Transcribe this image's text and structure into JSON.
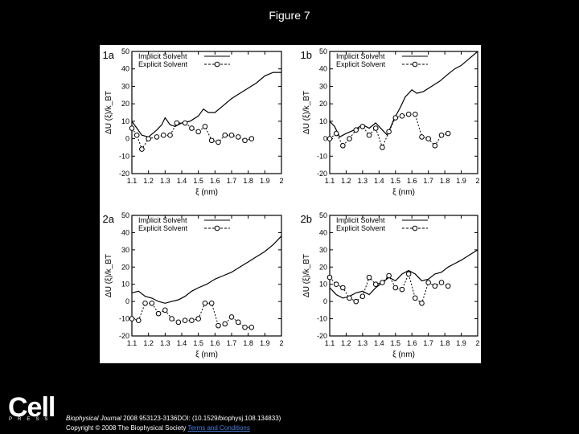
{
  "page": {
    "title": "Figure 7",
    "logo": "Cell",
    "press": "PRESS",
    "journal": "Biophysical Journal",
    "citation_rest": " 2008 953123-3136DOI: (10.1529/biophysj.108.134833)",
    "copyright": "Copyright © 2008 The Biophysical Society",
    "terms_link": "Terms and Conditions"
  },
  "chart_data": [
    {
      "type": "line",
      "panel_label": "1a",
      "legend": [
        "Implicit Solvent",
        "Explicit Solvent"
      ],
      "legend_position": "top-left",
      "xlabel": "ξ (nm)",
      "ylabel": "ΔU (ξ)/k_BT",
      "xlim": [
        1.1,
        2.0
      ],
      "ylim": [
        -20,
        50
      ],
      "xticks": [
        "1.1",
        "1.2",
        "1.3",
        "1.4",
        "1.5",
        "1.6",
        "1.7",
        "1.8",
        "1.9",
        "2"
      ],
      "yticks": [
        "50",
        "40",
        "30",
        "20",
        "10",
        "0",
        "-10",
        "-20"
      ],
      "series": [
        {
          "name": "Implicit Solvent",
          "style": "solid",
          "x": [
            1.1,
            1.13,
            1.16,
            1.2,
            1.25,
            1.28,
            1.3,
            1.33,
            1.36,
            1.4,
            1.45,
            1.5,
            1.53,
            1.56,
            1.6,
            1.65,
            1.7,
            1.75,
            1.8,
            1.85,
            1.9,
            1.95,
            2.0
          ],
          "y": [
            10,
            6,
            2,
            1,
            5,
            8,
            12,
            8,
            7,
            9,
            10,
            13,
            17,
            15,
            15,
            19,
            23,
            26,
            29,
            32,
            36,
            38,
            38
          ]
        },
        {
          "name": "Explicit Solvent",
          "style": "dashed-markers",
          "x": [
            1.1,
            1.13,
            1.16,
            1.2,
            1.25,
            1.29,
            1.33,
            1.37,
            1.42,
            1.46,
            1.5,
            1.54,
            1.58,
            1.62,
            1.66,
            1.7,
            1.74,
            1.78,
            1.82
          ],
          "y": [
            6,
            2,
            -6,
            0,
            1,
            2,
            2,
            9,
            9,
            6,
            4,
            7,
            -1,
            -2,
            2,
            2,
            1,
            -1,
            0
          ]
        }
      ]
    },
    {
      "type": "line",
      "panel_label": "1b",
      "legend": [
        "Implicit Solvent",
        "Explicit Solvent"
      ],
      "legend_position": "top-left",
      "xlabel": "ξ (nm)",
      "ylabel": "ΔU (ξ)/k_BT",
      "xlim": [
        1.1,
        2.0
      ],
      "ylim": [
        -20,
        50
      ],
      "xticks": [
        "1.1",
        "1.2",
        "1.3",
        "1.4",
        "1.5",
        "1.6",
        "1.7",
        "1.8",
        "1.9",
        "2"
      ],
      "yticks": [
        "50",
        "40",
        "30",
        "20",
        "10",
        "0",
        "-10",
        "-20"
      ],
      "series": [
        {
          "name": "Implicit Solvent",
          "style": "solid",
          "x": [
            1.1,
            1.13,
            1.16,
            1.2,
            1.25,
            1.3,
            1.34,
            1.38,
            1.42,
            1.45,
            1.49,
            1.53,
            1.56,
            1.6,
            1.63,
            1.67,
            1.72,
            1.77,
            1.82,
            1.86,
            1.9,
            1.95,
            2.0
          ],
          "y": [
            10,
            7,
            1,
            3,
            5,
            8,
            6,
            9,
            5,
            2,
            11,
            18,
            24,
            28,
            26,
            27,
            30,
            33,
            37,
            40,
            42,
            46,
            50
          ]
        },
        {
          "name": "Explicit Solvent",
          "style": "dashed-markers",
          "x": [
            1.1,
            1.14,
            1.18,
            1.22,
            1.26,
            1.3,
            1.34,
            1.38,
            1.42,
            1.46,
            1.5,
            1.54,
            1.58,
            1.62,
            1.66,
            1.7,
            1.74,
            1.78,
            1.82
          ],
          "y": [
            0,
            3,
            -4,
            0,
            5,
            7,
            2,
            6,
            -5,
            4,
            12,
            13,
            14,
            14,
            1,
            0,
            -4,
            2,
            3
          ]
        }
      ]
    },
    {
      "type": "line",
      "panel_label": "2a",
      "legend": [
        "Implicit Solvent",
        "Explicit Solvent"
      ],
      "legend_position": "top-left",
      "xlabel": "ξ (nm)",
      "ylabel": "ΔU (ξ)/k_BT",
      "xlim": [
        1.1,
        2.0
      ],
      "ylim": [
        -20,
        50
      ],
      "xticks": [
        "1.1",
        "1.2",
        "1.3",
        "1.4",
        "1.5",
        "1.6",
        "1.7",
        "1.8",
        "1.9",
        "2"
      ],
      "yticks": [
        "50",
        "40",
        "30",
        "20",
        "10",
        "0",
        "-10",
        "-20"
      ],
      "series": [
        {
          "name": "Implicit Solvent",
          "style": "solid",
          "x": [
            1.1,
            1.14,
            1.18,
            1.22,
            1.26,
            1.3,
            1.34,
            1.38,
            1.42,
            1.46,
            1.5,
            1.55,
            1.6,
            1.65,
            1.7,
            1.75,
            1.8,
            1.85,
            1.9,
            1.95,
            2.0
          ],
          "y": [
            5,
            6,
            3,
            2,
            0,
            -1,
            0,
            1,
            3,
            6,
            8,
            10,
            13,
            15,
            17,
            20,
            23,
            26,
            29,
            33,
            38
          ]
        },
        {
          "name": "Explicit Solvent",
          "style": "dashed-markers",
          "x": [
            1.1,
            1.14,
            1.18,
            1.22,
            1.26,
            1.3,
            1.34,
            1.38,
            1.42,
            1.46,
            1.5,
            1.54,
            1.58,
            1.62,
            1.66,
            1.7,
            1.74,
            1.78,
            1.82
          ],
          "y": [
            -10,
            -11,
            -1,
            -1,
            -7,
            -5,
            -10,
            -12,
            -11,
            -11,
            -10,
            -1,
            -1,
            -14,
            -13,
            -9,
            -12,
            -15,
            -15
          ]
        }
      ]
    },
    {
      "type": "line",
      "panel_label": "2b",
      "legend": [
        "Implicit Solvent",
        "Explicit Solvent"
      ],
      "legend_position": "top-left",
      "xlabel": "ξ (nm)",
      "ylabel": "ΔU (ξ)/k_BT",
      "xlim": [
        1.1,
        2.0
      ],
      "ylim": [
        -20,
        50
      ],
      "xticks": [
        "1.1",
        "1.2",
        "1.3",
        "1.4",
        "1.5",
        "1.6",
        "1.7",
        "1.8",
        "1.9",
        "2"
      ],
      "yticks": [
        "50",
        "40",
        "30",
        "20",
        "10",
        "0",
        "-10",
        "-20"
      ],
      "series": [
        {
          "name": "Implicit Solvent",
          "style": "solid",
          "x": [
            1.1,
            1.14,
            1.18,
            1.22,
            1.26,
            1.3,
            1.34,
            1.38,
            1.42,
            1.46,
            1.5,
            1.54,
            1.58,
            1.62,
            1.66,
            1.7,
            1.74,
            1.78,
            1.82,
            1.86,
            1.9,
            1.95,
            2.0
          ],
          "y": [
            8,
            4,
            2,
            3,
            5,
            6,
            4,
            8,
            11,
            14,
            12,
            16,
            18,
            16,
            12,
            13,
            16,
            17,
            20,
            22,
            24,
            27,
            30
          ]
        },
        {
          "name": "Explicit Solvent",
          "style": "dashed-markers",
          "x": [
            1.1,
            1.14,
            1.18,
            1.22,
            1.26,
            1.3,
            1.34,
            1.38,
            1.42,
            1.46,
            1.5,
            1.54,
            1.58,
            1.62,
            1.66,
            1.7,
            1.74,
            1.78,
            1.82
          ],
          "y": [
            14,
            10,
            8,
            2,
            0,
            3,
            14,
            10,
            11,
            15,
            8,
            7,
            16,
            2,
            -1,
            11,
            9,
            11,
            9
          ]
        }
      ]
    }
  ]
}
